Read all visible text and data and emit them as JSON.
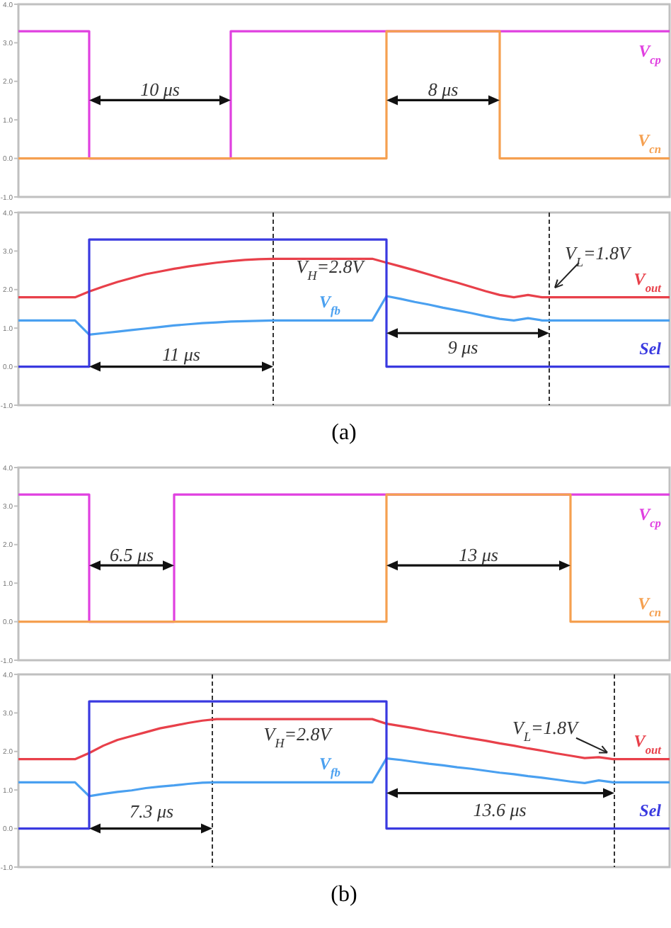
{
  "chart_data": [
    {
      "type": "line",
      "categories": [
        null,
        null,
        null,
        null,
        null,
        null,
        null,
        null,
        null,
        null,
        null,
        null,
        null,
        null,
        null,
        null,
        null,
        null,
        null,
        null,
        null,
        null,
        null,
        null,
        null,
        null,
        null,
        null,
        null,
        null,
        null,
        null,
        null,
        null,
        null,
        null,
        null,
        null,
        null,
        null,
        null,
        null,
        null,
        null,
        null,
        null,
        null
      ],
      "ylim": [
        -1,
        4
      ],
      "yticks": [
        {
          "value": -1,
          "label": "-1.0"
        },
        {
          "value": 0,
          "label": "0.0"
        },
        {
          "value": 1,
          "label": "1.0"
        },
        {
          "value": 2,
          "label": "2.0"
        },
        {
          "value": 3,
          "label": "3.0"
        },
        {
          "value": 4,
          "label": "4.0"
        }
      ],
      "tick_labels": "y",
      "legend": "right",
      "series": [
        {
          "name": "V$_{cp}$",
          "type": "step",
          "color": "#e040e0",
          "values": [
            3.3,
            3.3,
            3.3,
            3.3,
            3.3,
            0,
            0,
            0,
            0,
            0,
            0,
            0,
            0,
            0,
            0,
            3.3,
            3.3,
            3.3,
            3.3,
            3.3,
            3.3,
            3.3,
            3.3,
            3.3,
            3.3,
            3.3,
            3.3,
            3.3,
            3.3,
            3.3,
            3.3,
            3.3,
            3.3,
            3.3,
            3.3,
            3.3,
            3.3,
            3.3,
            3.3,
            3.3,
            3.3,
            3.3,
            3.3,
            3.3,
            3.3,
            3.3,
            3.3
          ]
        },
        {
          "name": "V$_{cn}$",
          "type": "step",
          "color": "#f5a050",
          "values": [
            0,
            0,
            0,
            0,
            0,
            0,
            0,
            0,
            0,
            0,
            0,
            0,
            0,
            0,
            0,
            0,
            0,
            0,
            0,
            0,
            0,
            0,
            0,
            0,
            0,
            0,
            3.3,
            3.3,
            3.3,
            3.3,
            3.3,
            3.3,
            3.3,
            3.3,
            0,
            0,
            0,
            0,
            0,
            0,
            0,
            0,
            0,
            0,
            0,
            0,
            0
          ]
        }
      ],
      "annotations": [
        "10 μs",
        "8 μs"
      ]
    },
    {
      "type": "line",
      "categories": [
        null,
        null,
        null,
        null,
        null,
        null,
        null,
        null,
        null,
        null,
        null,
        null,
        null,
        null,
        null,
        null,
        null,
        null,
        null,
        null,
        null,
        null,
        null,
        null,
        null,
        null,
        null,
        null,
        null,
        null,
        null,
        null,
        null,
        null,
        null,
        null,
        null,
        null,
        null,
        null,
        null,
        null,
        null,
        null,
        null,
        null,
        null
      ],
      "ylim": [
        -1,
        4
      ],
      "yticks": [
        {
          "value": -1,
          "label": "-1.0"
        },
        {
          "value": 0,
          "label": "0.0"
        },
        {
          "value": 1,
          "label": "1.0"
        },
        {
          "value": 2,
          "label": "2.0"
        },
        {
          "value": 3,
          "label": "3.0"
        },
        {
          "value": 4,
          "label": "4.0"
        }
      ],
      "tick_labels": "y",
      "legend": "right",
      "xlabel": "(a)",
      "series": [
        {
          "name": "V$_{out}$",
          "type": "line",
          "color": "#e8404a",
          "values": [
            1.8,
            1.8,
            1.8,
            1.8,
            1.8,
            1.95,
            2.08,
            2.2,
            2.3,
            2.4,
            2.47,
            2.54,
            2.6,
            2.65,
            2.7,
            2.74,
            2.77,
            2.79,
            2.8,
            2.8,
            2.8,
            2.8,
            2.8,
            2.8,
            2.8,
            2.8,
            2.7,
            2.6,
            2.5,
            2.39,
            2.28,
            2.18,
            2.07,
            1.96,
            1.86,
            1.8,
            1.86,
            1.8,
            1.8,
            1.8,
            1.8,
            1.8,
            1.8,
            1.8,
            1.8,
            1.8,
            1.8
          ]
        },
        {
          "name": "V$_{fb}$",
          "type": "line",
          "color": "#4aa0f0",
          "values": [
            1.2,
            1.2,
            1.2,
            1.2,
            1.2,
            0.83,
            0.87,
            0.91,
            0.95,
            0.99,
            1.03,
            1.07,
            1.1,
            1.13,
            1.15,
            1.17,
            1.18,
            1.19,
            1.2,
            1.2,
            1.2,
            1.2,
            1.2,
            1.2,
            1.2,
            1.2,
            1.83,
            1.76,
            1.68,
            1.61,
            1.53,
            1.46,
            1.39,
            1.31,
            1.24,
            1.2,
            1.26,
            1.2,
            1.2,
            1.2,
            1.2,
            1.2,
            1.2,
            1.2,
            1.2,
            1.2,
            1.2
          ]
        },
        {
          "name": "Sel",
          "type": "step",
          "color": "#3a3ae0",
          "values": [
            0,
            0,
            0,
            0,
            0,
            3.3,
            3.3,
            3.3,
            3.3,
            3.3,
            3.3,
            3.3,
            3.3,
            3.3,
            3.3,
            3.3,
            3.3,
            3.3,
            3.3,
            3.3,
            3.3,
            3.3,
            3.3,
            3.3,
            3.3,
            3.3,
            0,
            0,
            0,
            0,
            0,
            0,
            0,
            0,
            0,
            0,
            0,
            0,
            0,
            0,
            0,
            0,
            0,
            0,
            0,
            0,
            0
          ]
        }
      ],
      "annotations": [
        "V$_{H}$=2.8V",
        "V$_{L}$=1.8V",
        "11 μs",
        "9 μs"
      ]
    },
    {
      "type": "line",
      "categories": [
        null,
        null,
        null,
        null,
        null,
        null,
        null,
        null,
        null,
        null,
        null,
        null,
        null,
        null,
        null,
        null,
        null,
        null,
        null,
        null,
        null,
        null,
        null,
        null,
        null,
        null,
        null,
        null,
        null,
        null,
        null,
        null,
        null,
        null,
        null,
        null,
        null,
        null,
        null,
        null,
        null,
        null,
        null,
        null,
        null,
        null,
        null
      ],
      "ylim": [
        -1,
        4
      ],
      "yticks": [
        {
          "value": -1,
          "label": "-1.0"
        },
        {
          "value": 0,
          "label": "0.0"
        },
        {
          "value": 1,
          "label": "1.0"
        },
        {
          "value": 2,
          "label": "2.0"
        },
        {
          "value": 3,
          "label": "3.0"
        },
        {
          "value": 4,
          "label": "4.0"
        }
      ],
      "tick_labels": "y",
      "legend": "right",
      "series": [
        {
          "name": "V$_{cp}$",
          "type": "step",
          "color": "#e040e0",
          "values": [
            3.3,
            3.3,
            3.3,
            3.3,
            3.3,
            0,
            0,
            0,
            0,
            0,
            0,
            3.3,
            3.3,
            3.3,
            3.3,
            3.3,
            3.3,
            3.3,
            3.3,
            3.3,
            3.3,
            3.3,
            3.3,
            3.3,
            3.3,
            3.3,
            3.3,
            3.3,
            3.3,
            3.3,
            3.3,
            3.3,
            3.3,
            3.3,
            3.3,
            3.3,
            3.3,
            3.3,
            3.3,
            3.3,
            3.3,
            3.3,
            3.3,
            3.3,
            3.3,
            3.3,
            3.3
          ]
        },
        {
          "name": "V$_{cn}$",
          "type": "step",
          "color": "#f5a050",
          "values": [
            0,
            0,
            0,
            0,
            0,
            0,
            0,
            0,
            0,
            0,
            0,
            0,
            0,
            0,
            0,
            0,
            0,
            0,
            0,
            0,
            0,
            0,
            0,
            0,
            0,
            0,
            3.3,
            3.3,
            3.3,
            3.3,
            3.3,
            3.3,
            3.3,
            3.3,
            3.3,
            3.3,
            3.3,
            3.3,
            3.3,
            0,
            0,
            0,
            0,
            0,
            0,
            0,
            0
          ]
        }
      ],
      "annotations": [
        "6.5 μs",
        "13 μs"
      ]
    },
    {
      "type": "line",
      "categories": [
        null,
        null,
        null,
        null,
        null,
        null,
        null,
        null,
        null,
        null,
        null,
        null,
        null,
        null,
        null,
        null,
        null,
        null,
        null,
        null,
        null,
        null,
        null,
        null,
        null,
        null,
        null,
        null,
        null,
        null,
        null,
        null,
        null,
        null,
        null,
        null,
        null,
        null,
        null,
        null,
        null,
        null,
        null,
        null,
        null,
        null,
        null
      ],
      "ylim": [
        -1,
        4
      ],
      "yticks": [
        {
          "value": -1,
          "label": "-1.0"
        },
        {
          "value": 0,
          "label": "0.0"
        },
        {
          "value": 1,
          "label": "1.0"
        },
        {
          "value": 2,
          "label": "2.0"
        },
        {
          "value": 3,
          "label": "3.0"
        },
        {
          "value": 4,
          "label": "4.0"
        }
      ],
      "tick_labels": "y",
      "legend": "right",
      "xlabel": "(b)",
      "series": [
        {
          "name": "V$_{out}$",
          "type": "line",
          "color": "#e8404a",
          "values": [
            1.8,
            1.8,
            1.8,
            1.8,
            1.8,
            1.96,
            2.15,
            2.3,
            2.4,
            2.5,
            2.6,
            2.67,
            2.74,
            2.8,
            2.84,
            2.84,
            2.84,
            2.84,
            2.84,
            2.84,
            2.84,
            2.84,
            2.84,
            2.84,
            2.84,
            2.84,
            2.72,
            2.66,
            2.6,
            2.53,
            2.47,
            2.4,
            2.34,
            2.28,
            2.21,
            2.15,
            2.08,
            2.02,
            1.95,
            1.89,
            1.83,
            1.85,
            1.8,
            1.8,
            1.8,
            1.8,
            1.8
          ]
        },
        {
          "name": "V$_{fb}$",
          "type": "line",
          "color": "#4aa0f0",
          "values": [
            1.2,
            1.2,
            1.2,
            1.2,
            1.2,
            0.84,
            0.9,
            0.95,
            0.99,
            1.05,
            1.09,
            1.12,
            1.16,
            1.19,
            1.2,
            1.2,
            1.2,
            1.2,
            1.2,
            1.2,
            1.2,
            1.2,
            1.2,
            1.2,
            1.2,
            1.2,
            1.82,
            1.78,
            1.73,
            1.68,
            1.64,
            1.59,
            1.55,
            1.5,
            1.45,
            1.41,
            1.36,
            1.32,
            1.27,
            1.22,
            1.18,
            1.25,
            1.2,
            1.2,
            1.2,
            1.2,
            1.2
          ]
        },
        {
          "name": "Sel",
          "type": "step",
          "color": "#3a3ae0",
          "values": [
            0,
            0,
            0,
            0,
            0,
            3.3,
            3.3,
            3.3,
            3.3,
            3.3,
            3.3,
            3.3,
            3.3,
            3.3,
            3.3,
            3.3,
            3.3,
            3.3,
            3.3,
            3.3,
            3.3,
            3.3,
            3.3,
            3.3,
            3.3,
            3.3,
            0,
            0,
            0,
            0,
            0,
            0,
            0,
            0,
            0,
            0,
            0,
            0,
            0,
            0,
            0,
            0,
            0,
            0,
            0,
            0,
            0
          ]
        }
      ],
      "annotations": [
        "V$_{H}$=2.8V",
        "V$_{L}$=1.8V",
        "7.3 μs",
        "13.6 μs"
      ]
    }
  ]
}
